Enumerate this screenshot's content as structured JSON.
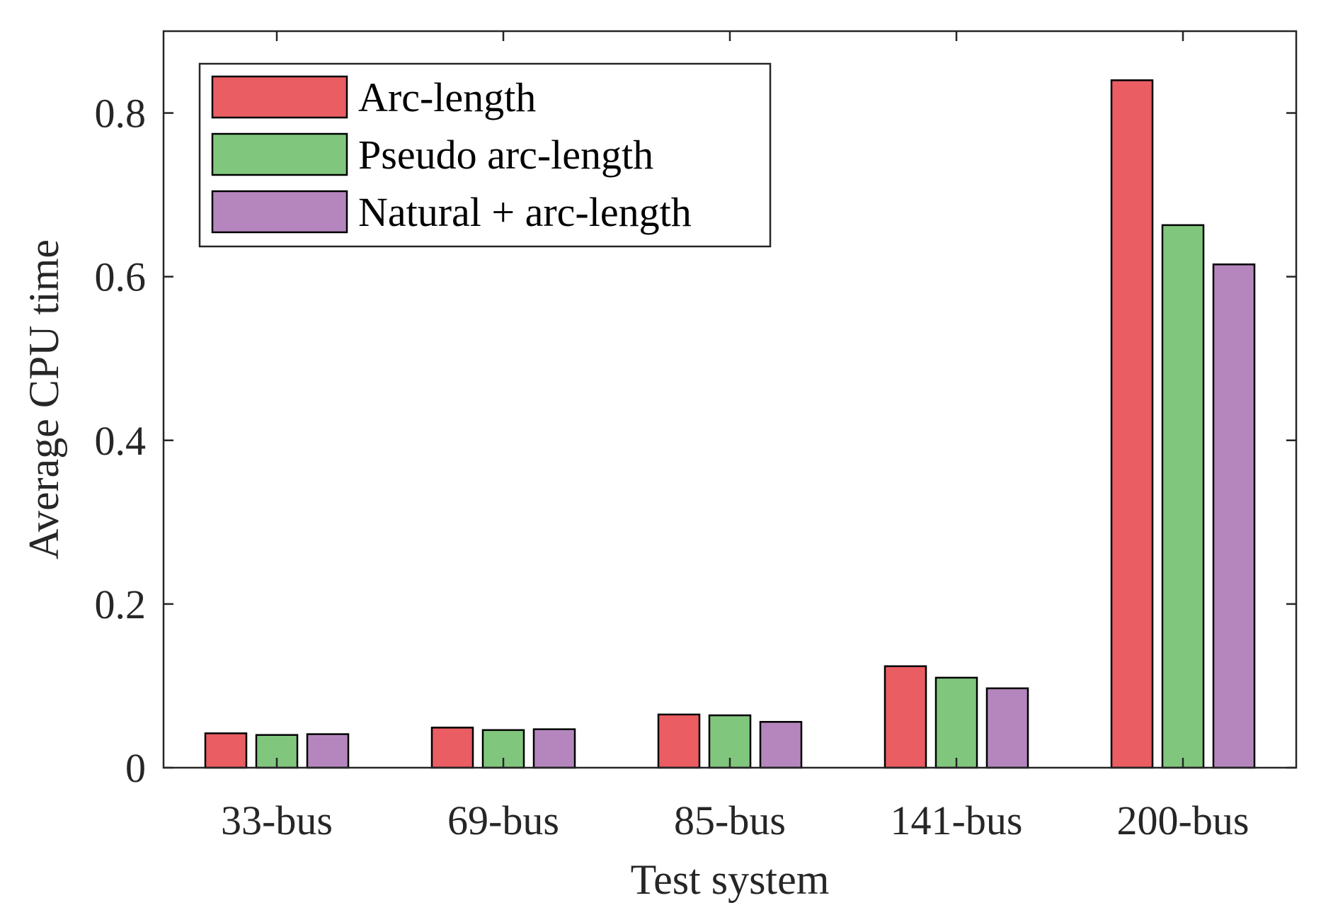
{
  "chart_data": {
    "type": "bar",
    "title": "",
    "xlabel": "Test system",
    "ylabel": "Average CPU time",
    "categories": [
      "33-bus",
      "69-bus",
      "85-bus",
      "141-bus",
      "200-bus"
    ],
    "series": [
      {
        "name": "Arc-length",
        "color": "#EA5D62",
        "values": [
          0.042,
          0.049,
          0.065,
          0.124,
          0.84
        ]
      },
      {
        "name": "Pseudo arc-length",
        "color": "#80C77D",
        "values": [
          0.04,
          0.046,
          0.064,
          0.11,
          0.663
        ]
      },
      {
        "name": "Natural + arc-length",
        "color": "#B586BE",
        "values": [
          0.041,
          0.047,
          0.056,
          0.097,
          0.615
        ]
      }
    ],
    "ylim": [
      0,
      0.9
    ],
    "yticks": [
      0,
      0.2,
      0.4,
      0.6,
      0.8
    ],
    "ytick_labels": [
      "0",
      "0.2",
      "0.4",
      "0.6",
      "0.8"
    ],
    "grid": false,
    "legend_position": "top-left"
  }
}
